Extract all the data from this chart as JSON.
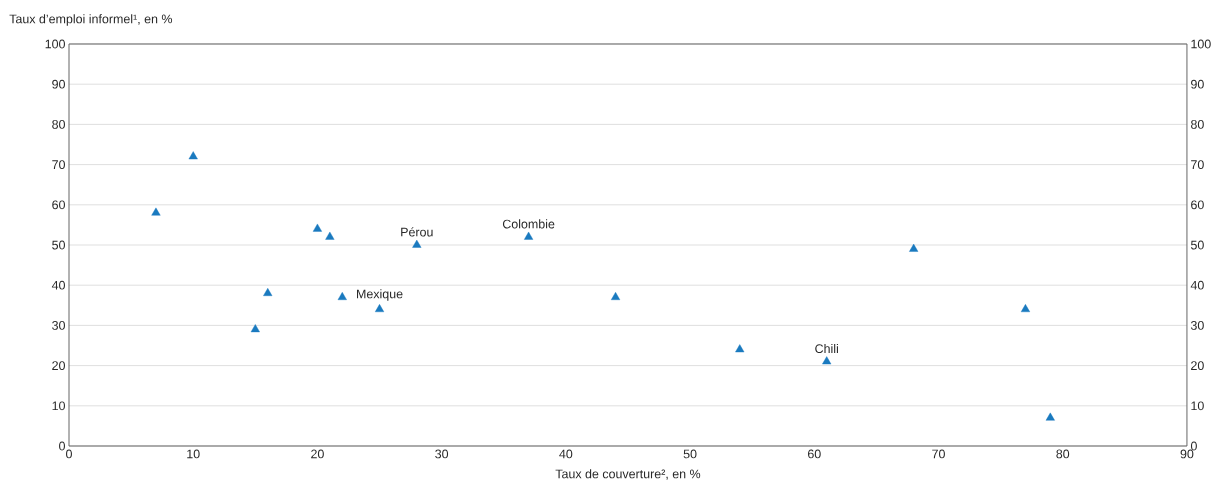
{
  "chart_data": {
    "type": "scatter",
    "xlabel": "Taux de couverture², en %",
    "ylabel": "Taux d’emploi informel¹, en %",
    "x": [
      7,
      10,
      15,
      16,
      20,
      21,
      22,
      25,
      28,
      37,
      44,
      54,
      61,
      68,
      77,
      79
    ],
    "series": [
      {
        "color": "#1a7abf",
        "values": [
          58,
          72,
          29,
          38,
          54,
          52,
          37,
          34,
          50,
          52,
          37,
          24,
          21,
          49,
          34,
          7
        ]
      }
    ],
    "xlim": [
      0,
      90
    ],
    "xticks": [
      0,
      10,
      20,
      30,
      40,
      50,
      60,
      70,
      80,
      90
    ],
    "ylim": [
      0,
      100
    ],
    "yticks": [
      0,
      10,
      20,
      30,
      40,
      50,
      60,
      70,
      80,
      90,
      100
    ],
    "y2lim": [
      0,
      100
    ],
    "y2ticks": [
      0,
      10,
      20,
      30,
      40,
      50,
      60,
      70,
      80,
      90,
      100
    ],
    "annotations": [
      {
        "text": "Pérou",
        "x": 28,
        "y": 50
      },
      {
        "text": "Colombie",
        "x": 37,
        "y": 52
      },
      {
        "text": "Mexique",
        "x": 25,
        "y": 34
      },
      {
        "text": "Chili",
        "x": 61,
        "y": 21
      }
    ],
    "grid": "y",
    "marker": "triangle"
  }
}
